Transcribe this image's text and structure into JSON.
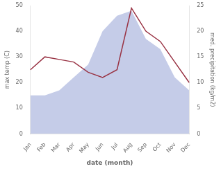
{
  "chart_data": {
    "type": "line",
    "categories": [
      "Jan",
      "Feb",
      "Mar",
      "Apr",
      "May",
      "Jun",
      "Jul",
      "Aug",
      "Sep",
      "Oct",
      "Nov",
      "Dec"
    ],
    "series": [
      {
        "type": "area",
        "color": "#c5cce8",
        "values": [
          15,
          15,
          17,
          22,
          27,
          40,
          46,
          48,
          37,
          33,
          22,
          17
        ]
      },
      {
        "type": "line",
        "color": "#993344",
        "axis": "y2",
        "values": [
          12.5,
          15,
          14.5,
          14,
          12,
          11,
          12.5,
          24.5,
          20,
          18,
          14,
          10
        ]
      }
    ],
    "xlabel": "date (month)",
    "ylabel": "max temp (C)",
    "y2label": "med. precipitation (kg/m2)",
    "ylim": [
      0,
      50
    ],
    "yticks": [
      0,
      10,
      20,
      30,
      40,
      50
    ],
    "y2lim": [
      0,
      25
    ],
    "y2ticks": [
      0,
      5,
      10,
      15,
      20,
      25
    ],
    "grid": false
  }
}
